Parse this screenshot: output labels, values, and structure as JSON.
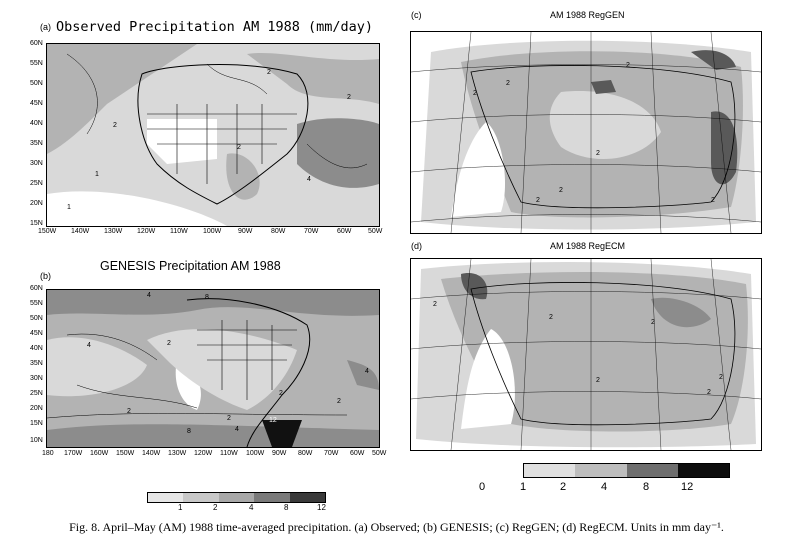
{
  "panels": {
    "a": {
      "letter": "(a)",
      "title": "Observed Precipitation AM 1988 (mm/day)",
      "lat_ticks": [
        "60N",
        "55N",
        "50N",
        "45N",
        "40N",
        "35N",
        "30N",
        "25N",
        "20N",
        "15N"
      ],
      "lon_ticks": [
        "150W",
        "140W",
        "130W",
        "120W",
        "110W",
        "100W",
        "90W",
        "80W",
        "70W",
        "60W",
        "50W"
      ],
      "contour_labels": [
        "1",
        "2",
        "2",
        "4",
        "2",
        "1",
        "2"
      ]
    },
    "b": {
      "letter": "(b)",
      "title": "GENESIS Precipitation AM 1988",
      "lat_ticks": [
        "60N",
        "55N",
        "50N",
        "45N",
        "40N",
        "35N",
        "30N",
        "25N",
        "20N",
        "15N",
        "10N"
      ],
      "lon_ticks": [
        "180",
        "170W",
        "160W",
        "150W",
        "140W",
        "130W",
        "120W",
        "110W",
        "100W",
        "90W",
        "80W",
        "70W",
        "60W",
        "50W"
      ],
      "contour_labels": [
        "4",
        "8",
        "2",
        "4",
        "2",
        "2",
        "4",
        "8",
        "12",
        "2",
        "2",
        "4"
      ]
    },
    "c": {
      "letter": "(c)",
      "title": "AM 1988 RegGEN",
      "contour_labels": [
        "2",
        "2",
        "2",
        "2",
        "2",
        "2",
        "2"
      ]
    },
    "d": {
      "letter": "(d)",
      "title": "AM 1988 RegECM",
      "contour_labels": [
        "2",
        "2",
        "2",
        "2",
        "2",
        "2"
      ]
    }
  },
  "legend_left": {
    "labels": [
      "1",
      "2",
      "4",
      "8",
      "12"
    ]
  },
  "legend_right": {
    "labels": [
      "0",
      "1",
      "2",
      "4",
      "8",
      "12"
    ]
  },
  "caption": "Fig. 8. April–May (AM) 1988 time-averaged precipitation. (a) Observed; (b) GENESIS; (c) RegGEN; (d) RegECM. Units in mm day⁻¹.",
  "colors": {
    "level0": "#ffffff",
    "level1": "#d9d9d9",
    "level2": "#b3b3b3",
    "level3": "#8c8c8c",
    "level4": "#595959",
    "level5": "#111111"
  }
}
